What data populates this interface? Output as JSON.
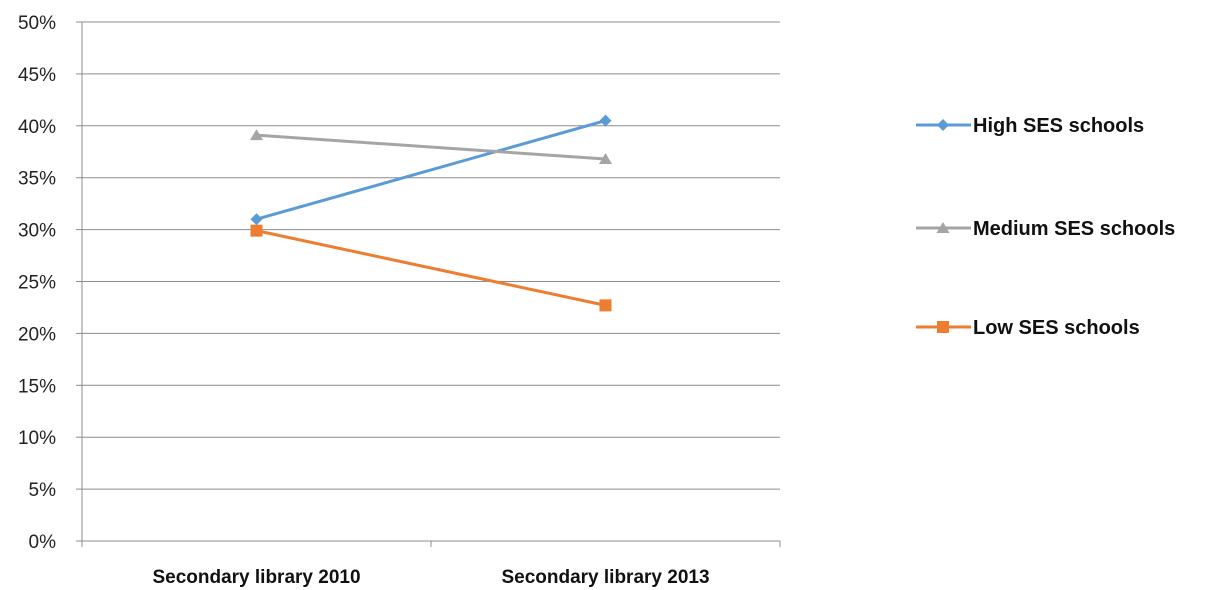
{
  "chart_data": {
    "type": "line",
    "title": "",
    "xlabel": "",
    "ylabel": "",
    "categories": [
      "Secondary library 2010",
      "Secondary library 2013"
    ],
    "y_ticks": [
      "0%",
      "5%",
      "10%",
      "15%",
      "20%",
      "25%",
      "30%",
      "35%",
      "40%",
      "45%",
      "50%"
    ],
    "ylim": [
      0,
      50
    ],
    "y_unit": "%",
    "grid": true,
    "legend_position": "right",
    "series": [
      {
        "name": "High SES schools",
        "values": [
          31.0,
          40.5
        ],
        "color": "#5B9BD5",
        "marker": "diamond"
      },
      {
        "name": "Medium SES schools",
        "values": [
          39.1,
          36.8
        ],
        "color": "#A5A5A5",
        "marker": "triangle"
      },
      {
        "name": "Low SES schools",
        "values": [
          29.9,
          22.7
        ],
        "color": "#ED7D31",
        "marker": "square"
      }
    ]
  }
}
